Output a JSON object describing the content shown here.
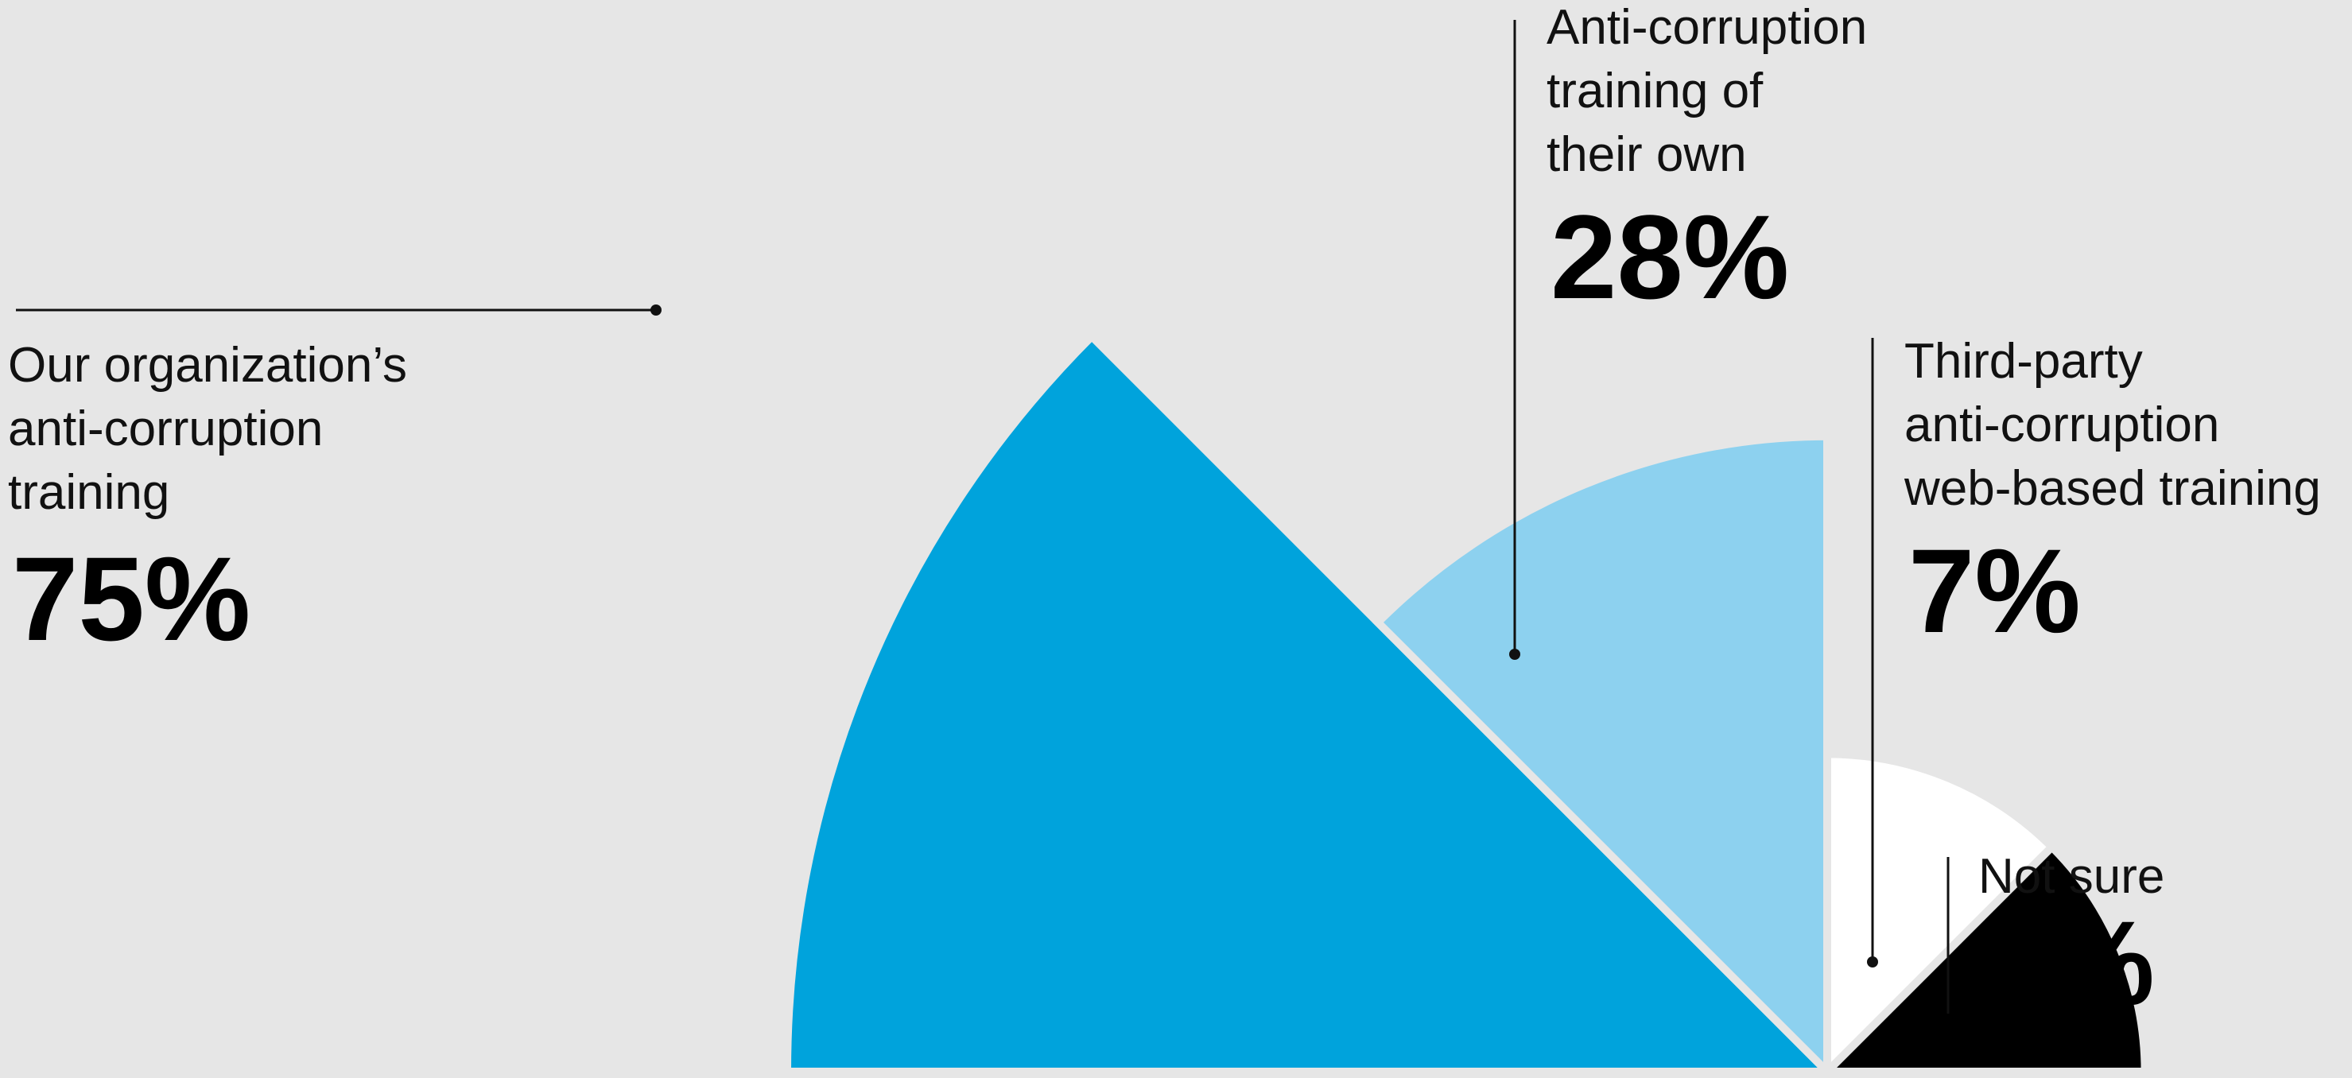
{
  "chart_data": {
    "type": "pie",
    "title": "",
    "slices": [
      {
        "label": "Our organization’s anti-corruption training",
        "lines": [
          "Our organization’s",
          "anti-corruption",
          "training"
        ],
        "value": 75,
        "display": "75%",
        "color": "#00a3dc"
      },
      {
        "label": "Anti-corruption training of their own",
        "lines": [
          "Anti-corruption",
          "training of",
          "their own"
        ],
        "value": 28,
        "display": "28%",
        "color": "#8dd1ef"
      },
      {
        "label": "Third-party anti-corruption web-based training",
        "lines": [
          "Third-party",
          "anti-corruption",
          "web-based training"
        ],
        "value": 7,
        "display": "7%",
        "color": "#ffffff"
      },
      {
        "label": "Not sure",
        "lines": [
          "Not sure"
        ],
        "value": 7,
        "display": "7%",
        "color": "#000000"
      }
    ],
    "background": "#e6e6e6",
    "leader_line_color": "#111111"
  }
}
